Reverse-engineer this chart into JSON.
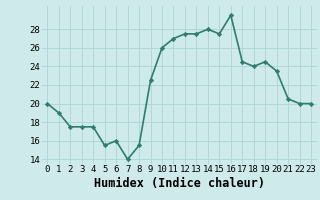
{
  "title": "",
  "xlabel": "Humidex (Indice chaleur)",
  "x_values": [
    0,
    1,
    2,
    3,
    4,
    5,
    6,
    7,
    8,
    9,
    10,
    11,
    12,
    13,
    14,
    15,
    16,
    17,
    18,
    19,
    20,
    21,
    22,
    23
  ],
  "y_values": [
    20,
    19,
    17.5,
    17.5,
    17.5,
    15.5,
    16,
    14,
    15.5,
    22.5,
    26,
    27,
    27.5,
    27.5,
    28,
    27.5,
    29.5,
    24.5,
    24,
    24.5,
    23.5,
    20.5,
    20,
    20
  ],
  "line_color": "#2e7d6e",
  "marker": "D",
  "marker_size": 2.2,
  "bg_color": "#ceeaea",
  "grid_color": "#b0d8d8",
  "ylim": [
    13.5,
    30.5
  ],
  "yticks": [
    14,
    16,
    18,
    20,
    22,
    24,
    26,
    28
  ],
  "xlim": [
    -0.5,
    23.5
  ],
  "xticks": [
    0,
    1,
    2,
    3,
    4,
    5,
    6,
    7,
    8,
    9,
    10,
    11,
    12,
    13,
    14,
    15,
    16,
    17,
    18,
    19,
    20,
    21,
    22,
    23
  ],
  "tick_label_fontsize": 6.5,
  "xlabel_fontsize": 8.5,
  "linewidth": 1.2
}
